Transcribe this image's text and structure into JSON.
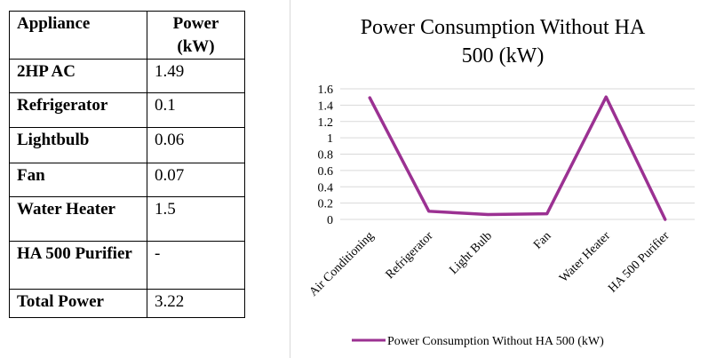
{
  "table": {
    "headers": [
      "Appliance",
      "Power\n(kW)"
    ],
    "rows": [
      {
        "name": "2HP AC",
        "value": "1.49"
      },
      {
        "name": "Refrigerator",
        "value": "0.1"
      },
      {
        "name": "Lightbulb",
        "value": "0.06"
      },
      {
        "name": "Fan",
        "value": "0.07"
      },
      {
        "name": "Water Heater",
        "value": "1.5"
      },
      {
        "name": "HA 500 Purifier",
        "value": "-"
      },
      {
        "name": "Total Power",
        "value": "3.22"
      }
    ]
  },
  "chart_data": {
    "type": "line",
    "title_lines": [
      "Power Consumption Without HA",
      "500 (kW)"
    ],
    "categories": [
      "Air Conditioning",
      "Refrigerator",
      "Light Bulb",
      "Fan",
      "Water Heater",
      "HA 500 Purifier"
    ],
    "series": [
      {
        "name": "Power Consumption Without HA 500 (kW)",
        "values": [
          1.49,
          0.1,
          0.06,
          0.07,
          1.5,
          0
        ],
        "color": "#9b3192"
      }
    ],
    "yticks": [
      "0",
      "0.2",
      "0.4",
      "0.6",
      "0.8",
      "1",
      "1.2",
      "1.4",
      "1.6"
    ],
    "ylim": [
      0,
      1.6
    ],
    "grid": true,
    "gridColor": "#d9d9d9",
    "legend": "bottom"
  }
}
